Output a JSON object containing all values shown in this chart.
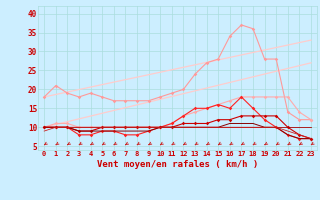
{
  "x": [
    0,
    1,
    2,
    3,
    4,
    5,
    6,
    7,
    8,
    9,
    10,
    11,
    12,
    13,
    14,
    15,
    16,
    17,
    18,
    19,
    20,
    21,
    22,
    23
  ],
  "lines": [
    {
      "y": [
        18,
        21,
        19,
        18,
        19,
        18,
        17,
        17,
        17,
        17,
        18,
        19,
        20,
        24,
        27,
        28,
        34,
        37,
        36,
        28,
        28,
        14,
        12,
        12
      ],
      "color": "#ff9999",
      "lw": 0.8,
      "marker": "D",
      "ms": 1.8
    },
    {
      "y": [
        10,
        11,
        11,
        10,
        10,
        10,
        10,
        10,
        10,
        10,
        10,
        11,
        13,
        14,
        15,
        16,
        17,
        18,
        18,
        18,
        18,
        18,
        14,
        12
      ],
      "color": "#ffaaaa",
      "lw": 0.8,
      "marker": "D",
      "ms": 1.8
    },
    {
      "y": [
        10,
        10,
        10,
        8,
        8,
        9,
        9,
        8,
        8,
        9,
        10,
        11,
        13,
        15,
        15,
        16,
        15,
        18,
        15,
        12,
        10,
        8,
        7,
        7
      ],
      "color": "#ff2222",
      "lw": 0.8,
      "marker": "D",
      "ms": 1.8
    },
    {
      "y": [
        10,
        10,
        10,
        9,
        9,
        10,
        10,
        10,
        10,
        10,
        10,
        10,
        11,
        11,
        11,
        12,
        12,
        13,
        13,
        13,
        13,
        10,
        8,
        7
      ],
      "color": "#cc0000",
      "lw": 0.8,
      "marker": "D",
      "ms": 1.8
    },
    {
      "y": [
        10,
        10,
        10,
        9,
        9,
        9,
        9,
        9,
        9,
        9,
        10,
        10,
        10,
        10,
        10,
        10,
        11,
        11,
        11,
        10,
        10,
        8,
        7,
        7
      ],
      "color": "#880000",
      "lw": 0.7,
      "marker": null,
      "ms": 0
    },
    {
      "y": [
        10,
        10,
        10,
        10,
        10,
        10,
        10,
        10,
        10,
        10,
        10,
        10,
        10,
        10,
        10,
        10,
        10,
        10,
        10,
        10,
        10,
        10,
        10,
        10
      ],
      "color": "#aa0000",
      "lw": 0.6,
      "marker": null,
      "ms": 0
    },
    {
      "y": [
        9,
        10,
        10,
        10,
        10,
        10,
        10,
        10,
        10,
        10,
        10,
        10,
        10,
        10,
        10,
        10,
        10,
        10,
        10,
        10,
        10,
        9,
        8,
        7
      ],
      "color": "#cc2222",
      "lw": 0.6,
      "marker": null,
      "ms": 0
    }
  ],
  "trend_lines": [
    {
      "x0": 0,
      "y0": 18,
      "x1": 23,
      "y1": 33,
      "color": "#ffcccc",
      "lw": 0.9
    },
    {
      "x0": 0,
      "y0": 10,
      "x1": 23,
      "y1": 27,
      "color": "#ffcccc",
      "lw": 0.9
    }
  ],
  "xlabel": "Vent moyen/en rafales ( km/h )",
  "ylabel_ticks": [
    5,
    10,
    15,
    20,
    25,
    30,
    35,
    40
  ],
  "ylim": [
    4,
    42
  ],
  "xlim": [
    -0.5,
    23.5
  ],
  "bg_color": "#cceeff",
  "grid_color": "#aadddd",
  "tick_color": "#cc0000",
  "label_color": "#cc0000",
  "arrow_color": "#cc2222"
}
